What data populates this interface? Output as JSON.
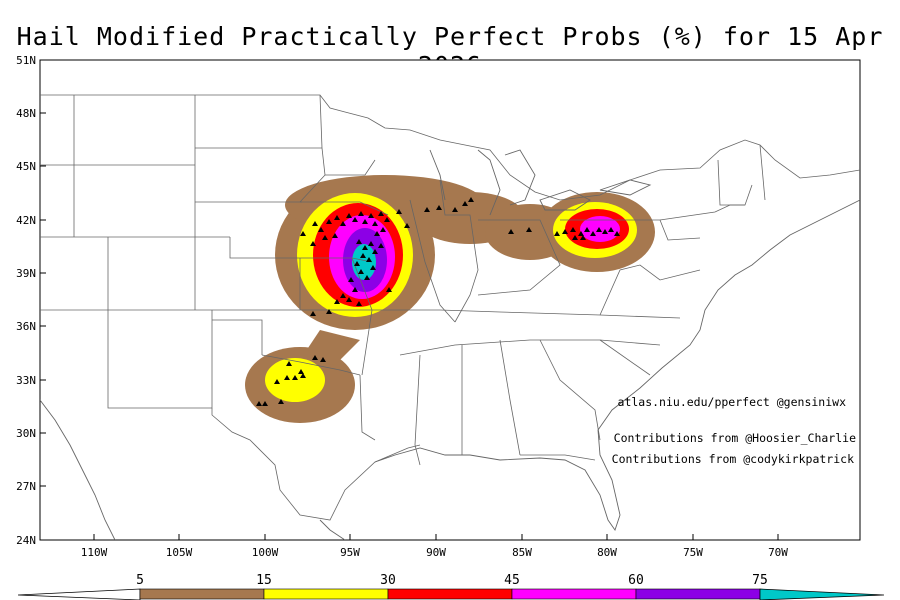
{
  "title": "Hail Modified Practically Perfect Probs (%) for 15 Apr 2026",
  "lat_ticks": [
    "51N",
    "48N",
    "45N",
    "42N",
    "39N",
    "36N",
    "33N",
    "30N",
    "27N",
    "24N"
  ],
  "lon_ticks": [
    "110W",
    "105W",
    "100W",
    "95W",
    "90W",
    "85W",
    "80W",
    "75W",
    "70W"
  ],
  "credits": {
    "site": "atlas.niu.edu/pperfect @gensiniwx",
    "contrib1": "Contributions from @Hoosier_Charlie",
    "contrib2": "Contributions from @codykirkpatrick"
  },
  "colorbar": {
    "labels": [
      "5",
      "15",
      "30",
      "45",
      "60",
      "75"
    ],
    "colors": {
      "5": "#a6784f",
      "15": "#ffff00",
      "30": "#ff0000",
      "45": "#ff00ff",
      "60": "#8c00e6",
      "75": "#00c8c8"
    }
  }
}
